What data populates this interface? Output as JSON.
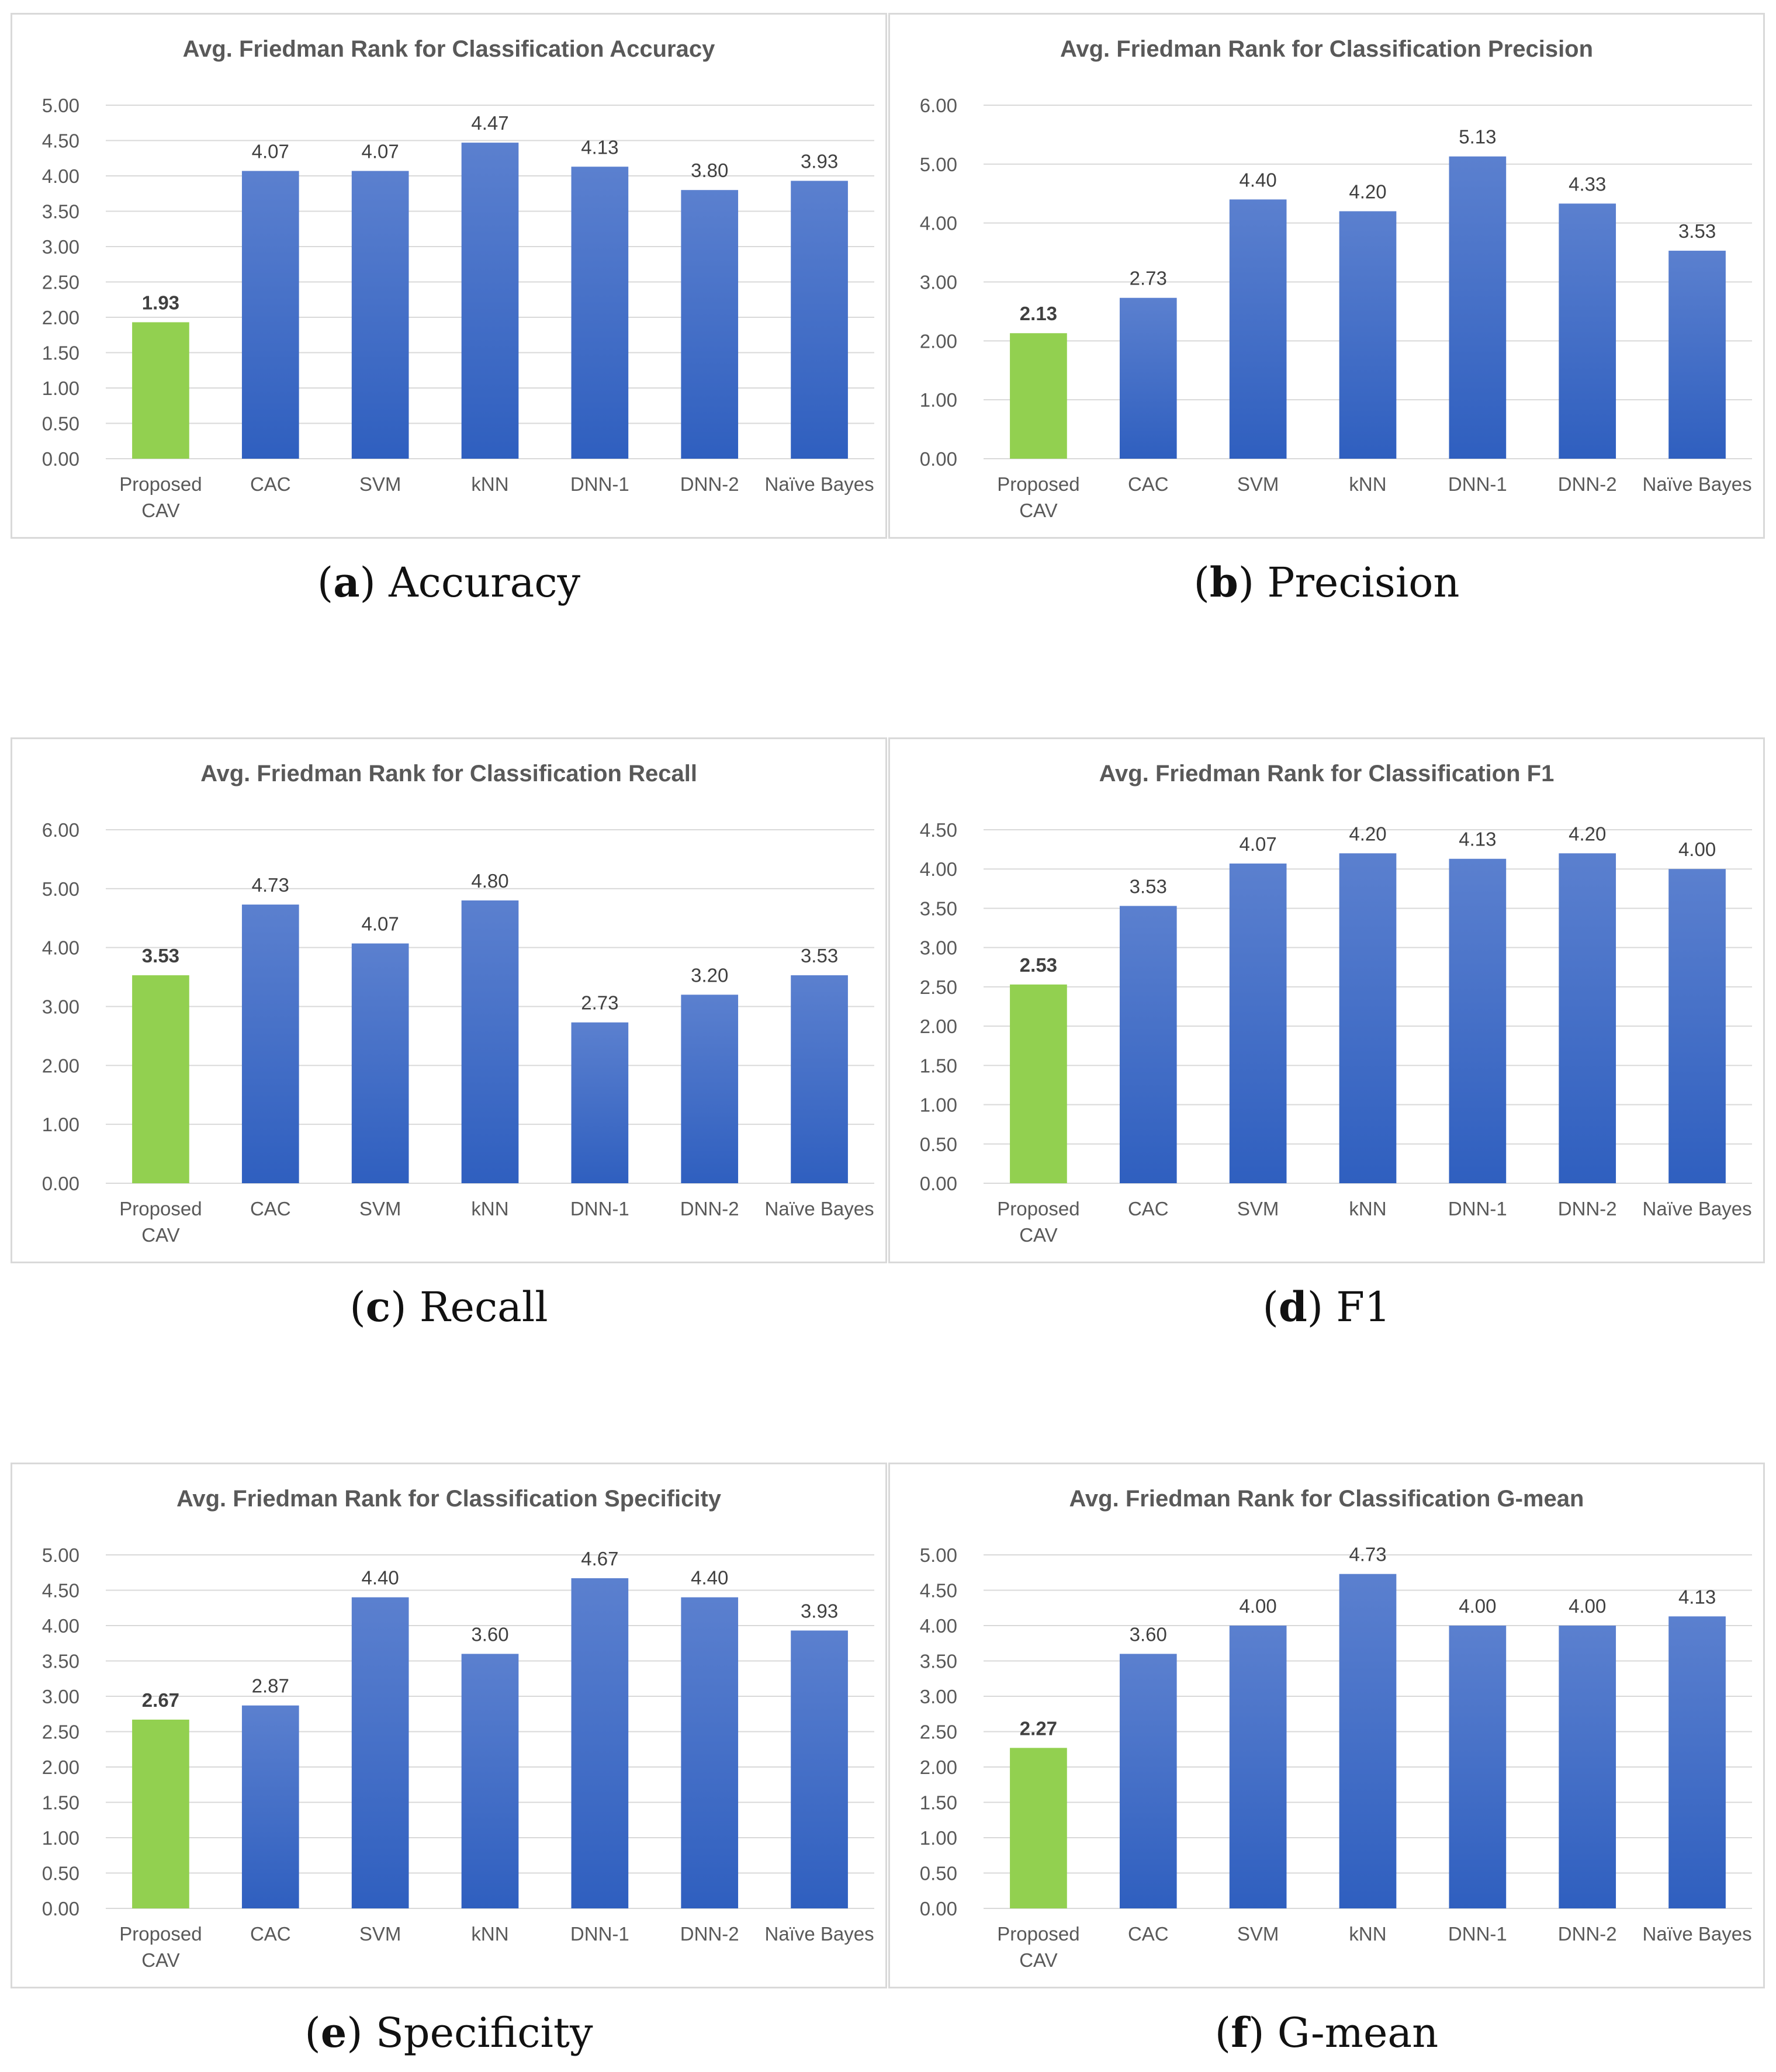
{
  "colors": {
    "highlight": "#92d050",
    "bar_top": "#5b80cf",
    "bar_bottom": "#2f5fbf",
    "grid": "#d9d9d9",
    "axis_text": "#595959"
  },
  "captions": [
    {
      "letter": "a",
      "text": "Accuracy"
    },
    {
      "letter": "b",
      "text": "Precision"
    },
    {
      "letter": "c",
      "text": "Recall"
    },
    {
      "letter": "d",
      "text": "F1"
    },
    {
      "letter": "e",
      "text": "Specificity"
    },
    {
      "letter": "f",
      "text": "G-mean"
    }
  ],
  "chart_data": [
    {
      "type": "bar",
      "title": "Avg. Friedman Rank for Classification Accuracy",
      "categories": [
        "Proposed CAV",
        "CAC",
        "SVM",
        "kNN",
        "DNN-1",
        "DNN-2",
        "Naïve Bayes"
      ],
      "values": [
        1.93,
        4.07,
        4.07,
        4.47,
        4.13,
        3.8,
        3.93
      ],
      "value_labels": [
        "1.93",
        "4.07",
        "4.07",
        "4.47",
        "4.13",
        "3.80",
        "3.93"
      ],
      "yticks": [
        "0.00",
        "0.50",
        "1.00",
        "1.50",
        "2.00",
        "2.50",
        "3.00",
        "3.50",
        "4.00",
        "4.50",
        "5.00"
      ],
      "ylim": [
        0,
        5
      ],
      "xlabel": "",
      "ylabel": "",
      "highlight_index": 0
    },
    {
      "type": "bar",
      "title": "Avg. Friedman Rank for Classification Precision",
      "categories": [
        "Proposed CAV",
        "CAC",
        "SVM",
        "kNN",
        "DNN-1",
        "DNN-2",
        "Naïve Bayes"
      ],
      "values": [
        2.13,
        2.73,
        4.4,
        4.2,
        5.13,
        4.33,
        3.53
      ],
      "value_labels": [
        "2.13",
        "2.73",
        "4.40",
        "4.20",
        "5.13",
        "4.33",
        "3.53"
      ],
      "yticks": [
        "0.00",
        "1.00",
        "2.00",
        "3.00",
        "4.00",
        "5.00",
        "6.00"
      ],
      "ylim": [
        0,
        6
      ],
      "xlabel": "",
      "ylabel": "",
      "highlight_index": 0
    },
    {
      "type": "bar",
      "title": "Avg. Friedman Rank for Classification Recall",
      "categories": [
        "Proposed CAV",
        "CAC",
        "SVM",
        "kNN",
        "DNN-1",
        "DNN-2",
        "Naïve Bayes"
      ],
      "values": [
        3.53,
        4.73,
        4.07,
        4.8,
        2.73,
        3.2,
        3.53
      ],
      "value_labels": [
        "3.53",
        "4.73",
        "4.07",
        "4.80",
        "2.73",
        "3.20",
        "3.53"
      ],
      "yticks": [
        "0.00",
        "1.00",
        "2.00",
        "3.00",
        "4.00",
        "5.00",
        "6.00"
      ],
      "ylim": [
        0,
        6
      ],
      "xlabel": "",
      "ylabel": "",
      "highlight_index": 0
    },
    {
      "type": "bar",
      "title": "Avg. Friedman Rank for Classification F1",
      "categories": [
        "Proposed CAV",
        "CAC",
        "SVM",
        "kNN",
        "DNN-1",
        "DNN-2",
        "Naïve Bayes"
      ],
      "values": [
        2.53,
        3.53,
        4.07,
        4.2,
        4.13,
        4.2,
        4.0
      ],
      "value_labels": [
        "2.53",
        "3.53",
        "4.07",
        "4.20",
        "4.13",
        "4.20",
        "4.00"
      ],
      "yticks": [
        "0.00",
        "0.50",
        "1.00",
        "1.50",
        "2.00",
        "2.50",
        "3.00",
        "3.50",
        "4.00",
        "4.50"
      ],
      "ylim": [
        0,
        4.5
      ],
      "xlabel": "",
      "ylabel": "",
      "highlight_index": 0
    },
    {
      "type": "bar",
      "title": "Avg. Friedman Rank for Classification Specificity",
      "categories": [
        "Proposed CAV",
        "CAC",
        "SVM",
        "kNN",
        "DNN-1",
        "DNN-2",
        "Naïve Bayes"
      ],
      "values": [
        2.67,
        2.87,
        4.4,
        3.6,
        4.67,
        4.4,
        3.93
      ],
      "value_labels": [
        "2.67",
        "2.87",
        "4.40",
        "3.60",
        "4.67",
        "4.40",
        "3.93"
      ],
      "yticks": [
        "0.00",
        "0.50",
        "1.00",
        "1.50",
        "2.00",
        "2.50",
        "3.00",
        "3.50",
        "4.00",
        "4.50",
        "5.00"
      ],
      "ylim": [
        0,
        5
      ],
      "xlabel": "",
      "ylabel": "",
      "highlight_index": 0
    },
    {
      "type": "bar",
      "title": "Avg. Friedman Rank for Classification G-mean",
      "categories": [
        "Proposed CAV",
        "CAC",
        "SVM",
        "kNN",
        "DNN-1",
        "DNN-2",
        "Naïve Bayes"
      ],
      "values": [
        2.27,
        3.6,
        4.0,
        4.73,
        4.0,
        4.0,
        4.13
      ],
      "value_labels": [
        "2.27",
        "3.60",
        "4.00",
        "4.73",
        "4.00",
        "4.00",
        "4.13"
      ],
      "yticks": [
        "0.00",
        "0.50",
        "1.00",
        "1.50",
        "2.00",
        "2.50",
        "3.00",
        "3.50",
        "4.00",
        "4.50",
        "5.00"
      ],
      "ylim": [
        0,
        5
      ],
      "xlabel": "",
      "ylabel": "",
      "highlight_index": 0
    }
  ]
}
